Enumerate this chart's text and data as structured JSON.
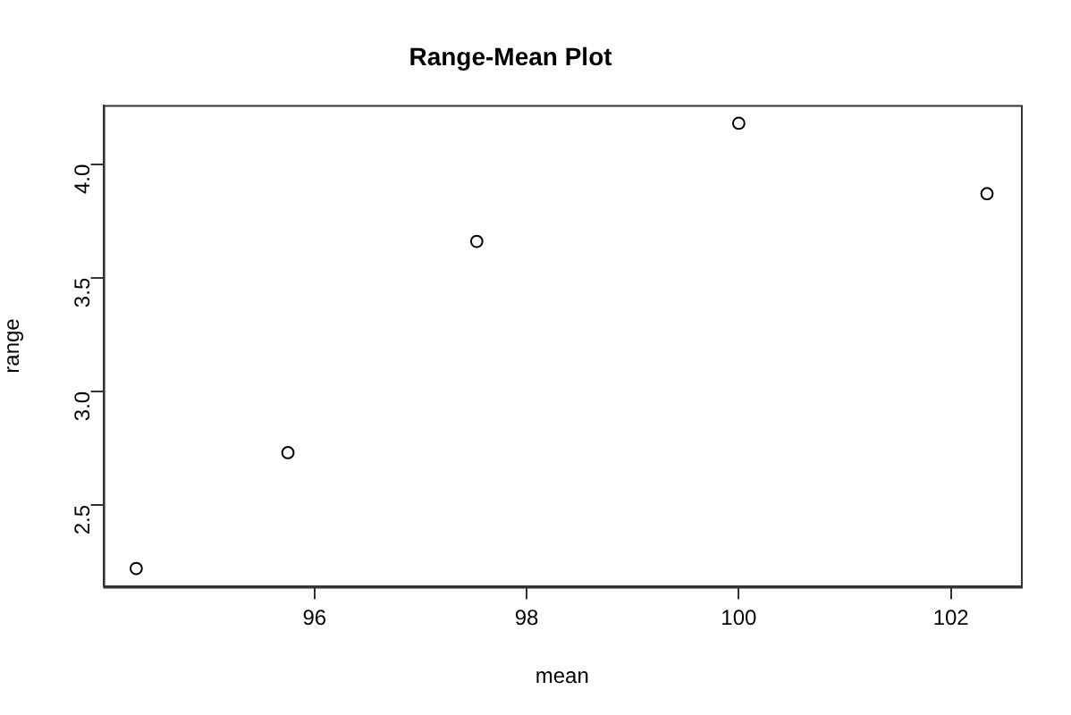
{
  "chart_data": {
    "type": "scatter",
    "title": "Range-Mean Plot",
    "xlabel": "mean",
    "ylabel": "range",
    "series": [
      {
        "color": "#000000",
        "x": [
          94.32,
          95.75,
          97.53,
          100.0,
          102.34
        ],
        "values": [
          2.22,
          2.73,
          3.66,
          4.18,
          3.87
        ]
      }
    ],
    "xlim": [
      94.01,
      102.66
    ],
    "ylim": [
      2.14,
      4.26
    ],
    "xticks": [
      96,
      98,
      100,
      102
    ],
    "yticks": [
      2.5,
      {
        "value": 3,
        "label": "3.0"
      },
      3.5,
      {
        "value": 4,
        "label": "4.0"
      }
    ],
    "marker": "circle",
    "grid": false,
    "legend": false
  }
}
